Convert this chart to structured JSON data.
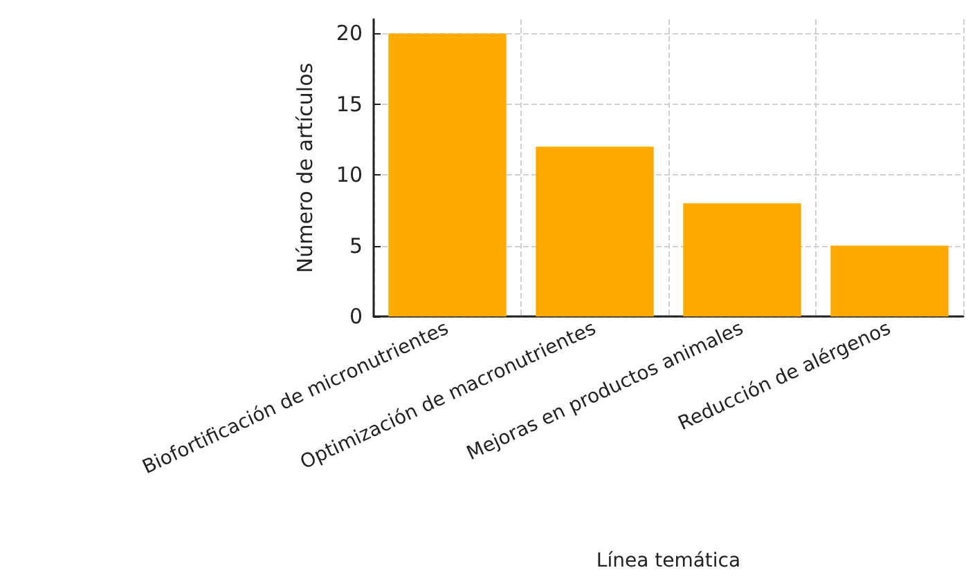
{
  "chart_data": {
    "type": "bar",
    "categories": [
      "Biofortificación de micronutrientes",
      "Optimización de macronutrientes",
      "Mejoras en productos animales",
      "Reducción de alérgenos"
    ],
    "values": [
      20,
      12,
      8,
      5
    ],
    "color": "#ffaa00",
    "xlabel": "Línea temática",
    "ylabel": "Número de artículos",
    "ylim": [
      0,
      21
    ],
    "yticks": [
      0,
      5,
      10,
      15,
      20
    ],
    "grid": true
  }
}
